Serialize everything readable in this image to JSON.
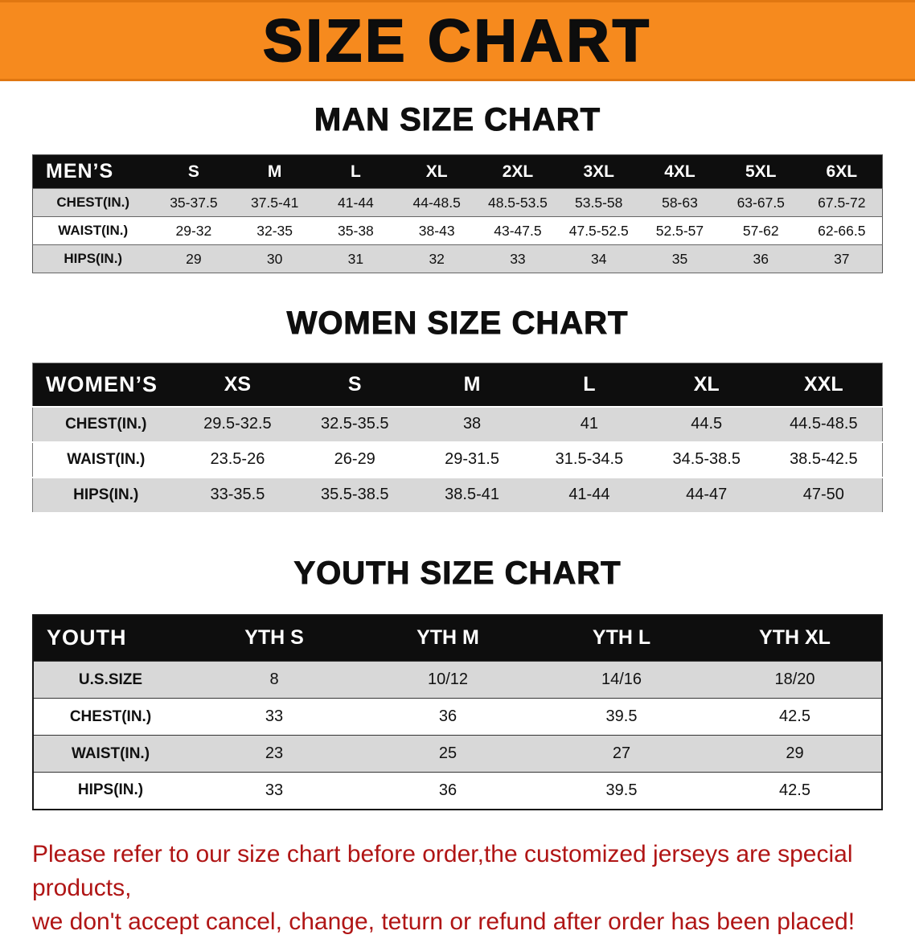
{
  "banner": {
    "title": "SIZE CHART"
  },
  "colors": {
    "banner_orange": "#f68a1e",
    "header_black": "#0e0e0e",
    "alt_row_gray": "#d8d8d8",
    "footer_red": "#b01515"
  },
  "sections": {
    "men": {
      "heading": "MAN SIZE CHART",
      "table": {
        "corner": "MEN’S",
        "columns": [
          "S",
          "M",
          "L",
          "XL",
          "2XL",
          "3XL",
          "4XL",
          "5XL",
          "6XL"
        ],
        "rows": [
          {
            "label": "CHEST(IN.)",
            "cells": [
              "35-37.5",
              "37.5-41",
              "41-44",
              "44-48.5",
              "48.5-53.5",
              "53.5-58",
              "58-63",
              "63-67.5",
              "67.5-72"
            ]
          },
          {
            "label": "WAIST(IN.)",
            "cells": [
              "29-32",
              "32-35",
              "35-38",
              "38-43",
              "43-47.5",
              "47.5-52.5",
              "52.5-57",
              "57-62",
              "62-66.5"
            ]
          },
          {
            "label": "HIPS(IN.)",
            "cells": [
              "29",
              "30",
              "31",
              "32",
              "33",
              "34",
              "35",
              "36",
              "37"
            ]
          }
        ]
      }
    },
    "women": {
      "heading": "WOMEN SIZE CHART",
      "table": {
        "corner": "WOMEN’S",
        "columns": [
          "XS",
          "S",
          "M",
          "L",
          "XL",
          "XXL"
        ],
        "rows": [
          {
            "label": "CHEST(IN.)",
            "cells": [
              "29.5-32.5",
              "32.5-35.5",
              "38",
              "41",
              "44.5",
              "44.5-48.5"
            ]
          },
          {
            "label": "WAIST(IN.)",
            "cells": [
              "23.5-26",
              "26-29",
              "29-31.5",
              "31.5-34.5",
              "34.5-38.5",
              "38.5-42.5"
            ]
          },
          {
            "label": "HIPS(IN.)",
            "cells": [
              "33-35.5",
              "35.5-38.5",
              "38.5-41",
              "41-44",
              "44-47",
              "47-50"
            ]
          }
        ]
      }
    },
    "youth": {
      "heading": "YOUTH SIZE CHART",
      "table": {
        "corner": "YOUTH",
        "columns": [
          "YTH S",
          "YTH M",
          "YTH L",
          "YTH XL"
        ],
        "rows": [
          {
            "label": "U.S.SIZE",
            "cells": [
              "8",
              "10/12",
              "14/16",
              "18/20"
            ]
          },
          {
            "label": "CHEST(IN.)",
            "cells": [
              "33",
              "36",
              "39.5",
              "42.5"
            ]
          },
          {
            "label": "WAIST(IN.)",
            "cells": [
              "23",
              "25",
              "27",
              "29"
            ]
          },
          {
            "label": "HIPS(IN.)",
            "cells": [
              "33",
              "36",
              "39.5",
              "42.5"
            ]
          }
        ]
      }
    }
  },
  "footer": {
    "line1": "Please refer to our size chart before order,the customized jerseys are special products,",
    "line2": "we don't accept cancel, change, teturn or refund after order has been placed!"
  }
}
